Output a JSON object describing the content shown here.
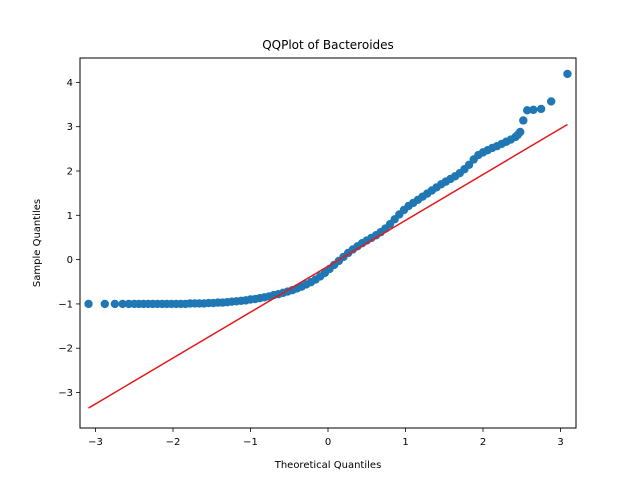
{
  "chart_data": {
    "type": "scatter",
    "title": "QQPlot of Bacteroides",
    "xlabel": "Theoretical Quantiles",
    "ylabel": "Sample Quantiles",
    "xlim": [
      -3.2,
      3.2
    ],
    "ylim": [
      -3.8,
      4.55
    ],
    "xticks": [
      -3,
      -2,
      -1,
      0,
      1,
      2,
      3
    ],
    "yticks": [
      -3,
      -2,
      -1,
      0,
      1,
      2,
      3,
      4
    ],
    "grid": false,
    "legend": "none",
    "series": [
      {
        "kind": "points",
        "color": "#1f77b4",
        "points": [
          [
            -3.09,
            -1.0
          ],
          [
            -2.88,
            -1.0
          ],
          [
            -2.75,
            -1.0
          ],
          [
            -2.65,
            -1.0
          ],
          [
            -2.57,
            -1.0
          ],
          [
            -2.5,
            -1.0
          ],
          [
            -2.44,
            -1.0
          ],
          [
            -2.38,
            -1.0
          ],
          [
            -2.32,
            -1.0
          ],
          [
            -2.26,
            -1.0
          ],
          [
            -2.2,
            -1.0
          ],
          [
            -2.14,
            -1.0
          ],
          [
            -2.08,
            -1.0
          ],
          [
            -2.02,
            -1.0
          ],
          [
            -1.96,
            -1.0
          ],
          [
            -1.9,
            -1.0
          ],
          [
            -1.84,
            -1.0
          ],
          [
            -1.78,
            -0.99
          ],
          [
            -1.72,
            -0.99
          ],
          [
            -1.66,
            -0.99
          ],
          [
            -1.6,
            -0.99
          ],
          [
            -1.54,
            -0.98
          ],
          [
            -1.48,
            -0.98
          ],
          [
            -1.42,
            -0.97
          ],
          [
            -1.36,
            -0.97
          ],
          [
            -1.3,
            -0.96
          ],
          [
            -1.24,
            -0.95
          ],
          [
            -1.18,
            -0.94
          ],
          [
            -1.12,
            -0.93
          ],
          [
            -1.06,
            -0.92
          ],
          [
            -1.0,
            -0.9
          ],
          [
            -0.94,
            -0.89
          ],
          [
            -0.88,
            -0.87
          ],
          [
            -0.82,
            -0.85
          ],
          [
            -0.76,
            -0.83
          ],
          [
            -0.7,
            -0.8
          ],
          [
            -0.64,
            -0.78
          ],
          [
            -0.58,
            -0.75
          ],
          [
            -0.52,
            -0.72
          ],
          [
            -0.46,
            -0.69
          ],
          [
            -0.4,
            -0.65
          ],
          [
            -0.34,
            -0.61
          ],
          [
            -0.28,
            -0.56
          ],
          [
            -0.22,
            -0.51
          ],
          [
            -0.16,
            -0.45
          ],
          [
            -0.1,
            -0.38
          ],
          [
            -0.04,
            -0.3
          ],
          [
            0.02,
            -0.21
          ],
          [
            0.08,
            -0.12
          ],
          [
            0.14,
            -0.03
          ],
          [
            0.2,
            0.06
          ],
          [
            0.26,
            0.15
          ],
          [
            0.32,
            0.23
          ],
          [
            0.38,
            0.3
          ],
          [
            0.44,
            0.37
          ],
          [
            0.5,
            0.43
          ],
          [
            0.56,
            0.49
          ],
          [
            0.62,
            0.55
          ],
          [
            0.68,
            0.62
          ],
          [
            0.74,
            0.7
          ],
          [
            0.8,
            0.8
          ],
          [
            0.86,
            0.91
          ],
          [
            0.92,
            1.02
          ],
          [
            0.98,
            1.12
          ],
          [
            1.04,
            1.21
          ],
          [
            1.1,
            1.28
          ],
          [
            1.16,
            1.35
          ],
          [
            1.22,
            1.42
          ],
          [
            1.28,
            1.49
          ],
          [
            1.34,
            1.56
          ],
          [
            1.4,
            1.63
          ],
          [
            1.46,
            1.7
          ],
          [
            1.52,
            1.76
          ],
          [
            1.58,
            1.82
          ],
          [
            1.64,
            1.88
          ],
          [
            1.7,
            1.95
          ],
          [
            1.76,
            2.04
          ],
          [
            1.82,
            2.14
          ],
          [
            1.88,
            2.26
          ],
          [
            1.94,
            2.36
          ],
          [
            2.0,
            2.42
          ],
          [
            2.06,
            2.47
          ],
          [
            2.12,
            2.52
          ],
          [
            2.18,
            2.56
          ],
          [
            2.24,
            2.61
          ],
          [
            2.3,
            2.66
          ],
          [
            2.36,
            2.71
          ],
          [
            2.42,
            2.77
          ],
          [
            2.45,
            2.82
          ],
          [
            2.48,
            2.88
          ],
          [
            2.52,
            3.14
          ],
          [
            2.57,
            3.37
          ],
          [
            2.65,
            3.38
          ],
          [
            2.75,
            3.4
          ],
          [
            2.88,
            3.57
          ],
          [
            3.09,
            4.19
          ]
        ]
      },
      {
        "kind": "line",
        "color": "#e31a1c",
        "points": [
          [
            -3.09,
            -3.35
          ],
          [
            3.09,
            3.05
          ]
        ]
      }
    ]
  }
}
